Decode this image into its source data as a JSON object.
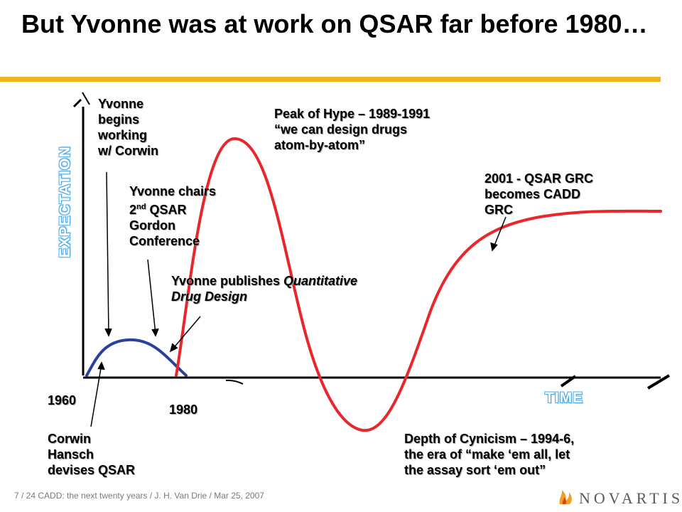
{
  "slide": {
    "title": "But Yvonne was at work on QSAR far before 1980…"
  },
  "axes": {
    "y_label": "EXPECTATION",
    "x_label": "TIME"
  },
  "years": {
    "start": "1960",
    "mid": "1980"
  },
  "annotations": {
    "yvonne_begins": [
      "Yvonne",
      "begins",
      "working",
      "w/ Corwin"
    ],
    "yvonne_chairs_line1": "Yvonne chairs",
    "yvonne_chairs_line2_num": "2",
    "yvonne_chairs_line2_sup": "nd",
    "yvonne_chairs_line2_rest": " QSAR",
    "yvonne_chairs_line3": "Gordon",
    "yvonne_chairs_line4": "Conference",
    "publishes_prefix": "Yvonne publishes ",
    "publishes_italic1": "Quantitative",
    "publishes_italic2": "Drug Design",
    "peak": [
      "Peak of Hype – 1989-1991",
      "“we can design drugs",
      "atom-by-atom”"
    ],
    "grc": [
      "2001 - QSAR GRC",
      "becomes CADD",
      "GRC"
    ],
    "corwin": [
      "Corwin",
      "Hansch",
      "devises QSAR"
    ],
    "depth": [
      "Depth of Cynicism – 1994-6,",
      "the era of “make ‘em all, let",
      "the assay sort ‘em out”"
    ]
  },
  "footer": {
    "text": "7 / 24 CADD:  the next twenty years / J. H. Van Drie / Mar 25, 2007"
  },
  "logo": {
    "text": "NOVARTIS"
  },
  "colors": {
    "accent_gold": "#f0b41e",
    "hype_curve": "#e8262b",
    "early_curve": "#2b3f9e",
    "axis_label_blue": "#49a8e8"
  }
}
